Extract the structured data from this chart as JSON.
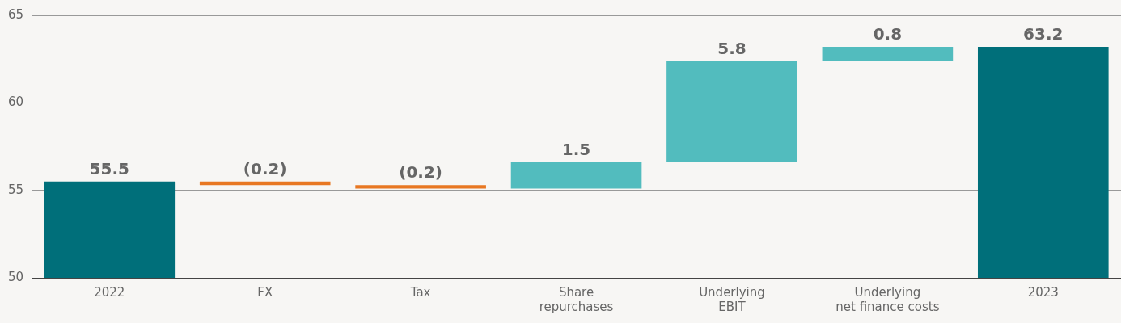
{
  "chart_data": {
    "type": "bar",
    "categories": [
      "2022",
      "FX",
      "Tax",
      "Share\nrepurchases",
      "Underlying\nEBIT",
      "Underlying\nnet finance costs",
      "2023"
    ],
    "values": [
      55.5,
      -0.2,
      -0.2,
      1.5,
      5.8,
      0.8,
      63.2
    ],
    "base": [
      null,
      55.5,
      55.3,
      55.1,
      56.6,
      62.4,
      null
    ],
    "colors": [
      "#006f7a",
      "#e87722",
      "#e87722",
      "#52bcbe",
      "#52bcbe",
      "#52bcbe",
      "#006f7a"
    ],
    "value_labels": [
      "55.5",
      "(0.2)",
      "(0.2)",
      "1.5",
      "5.8",
      "0.8",
      "63.2"
    ],
    "ylim": [
      50,
      65
    ],
    "yticks": [
      50,
      55,
      60,
      65
    ],
    "grid": "y"
  }
}
